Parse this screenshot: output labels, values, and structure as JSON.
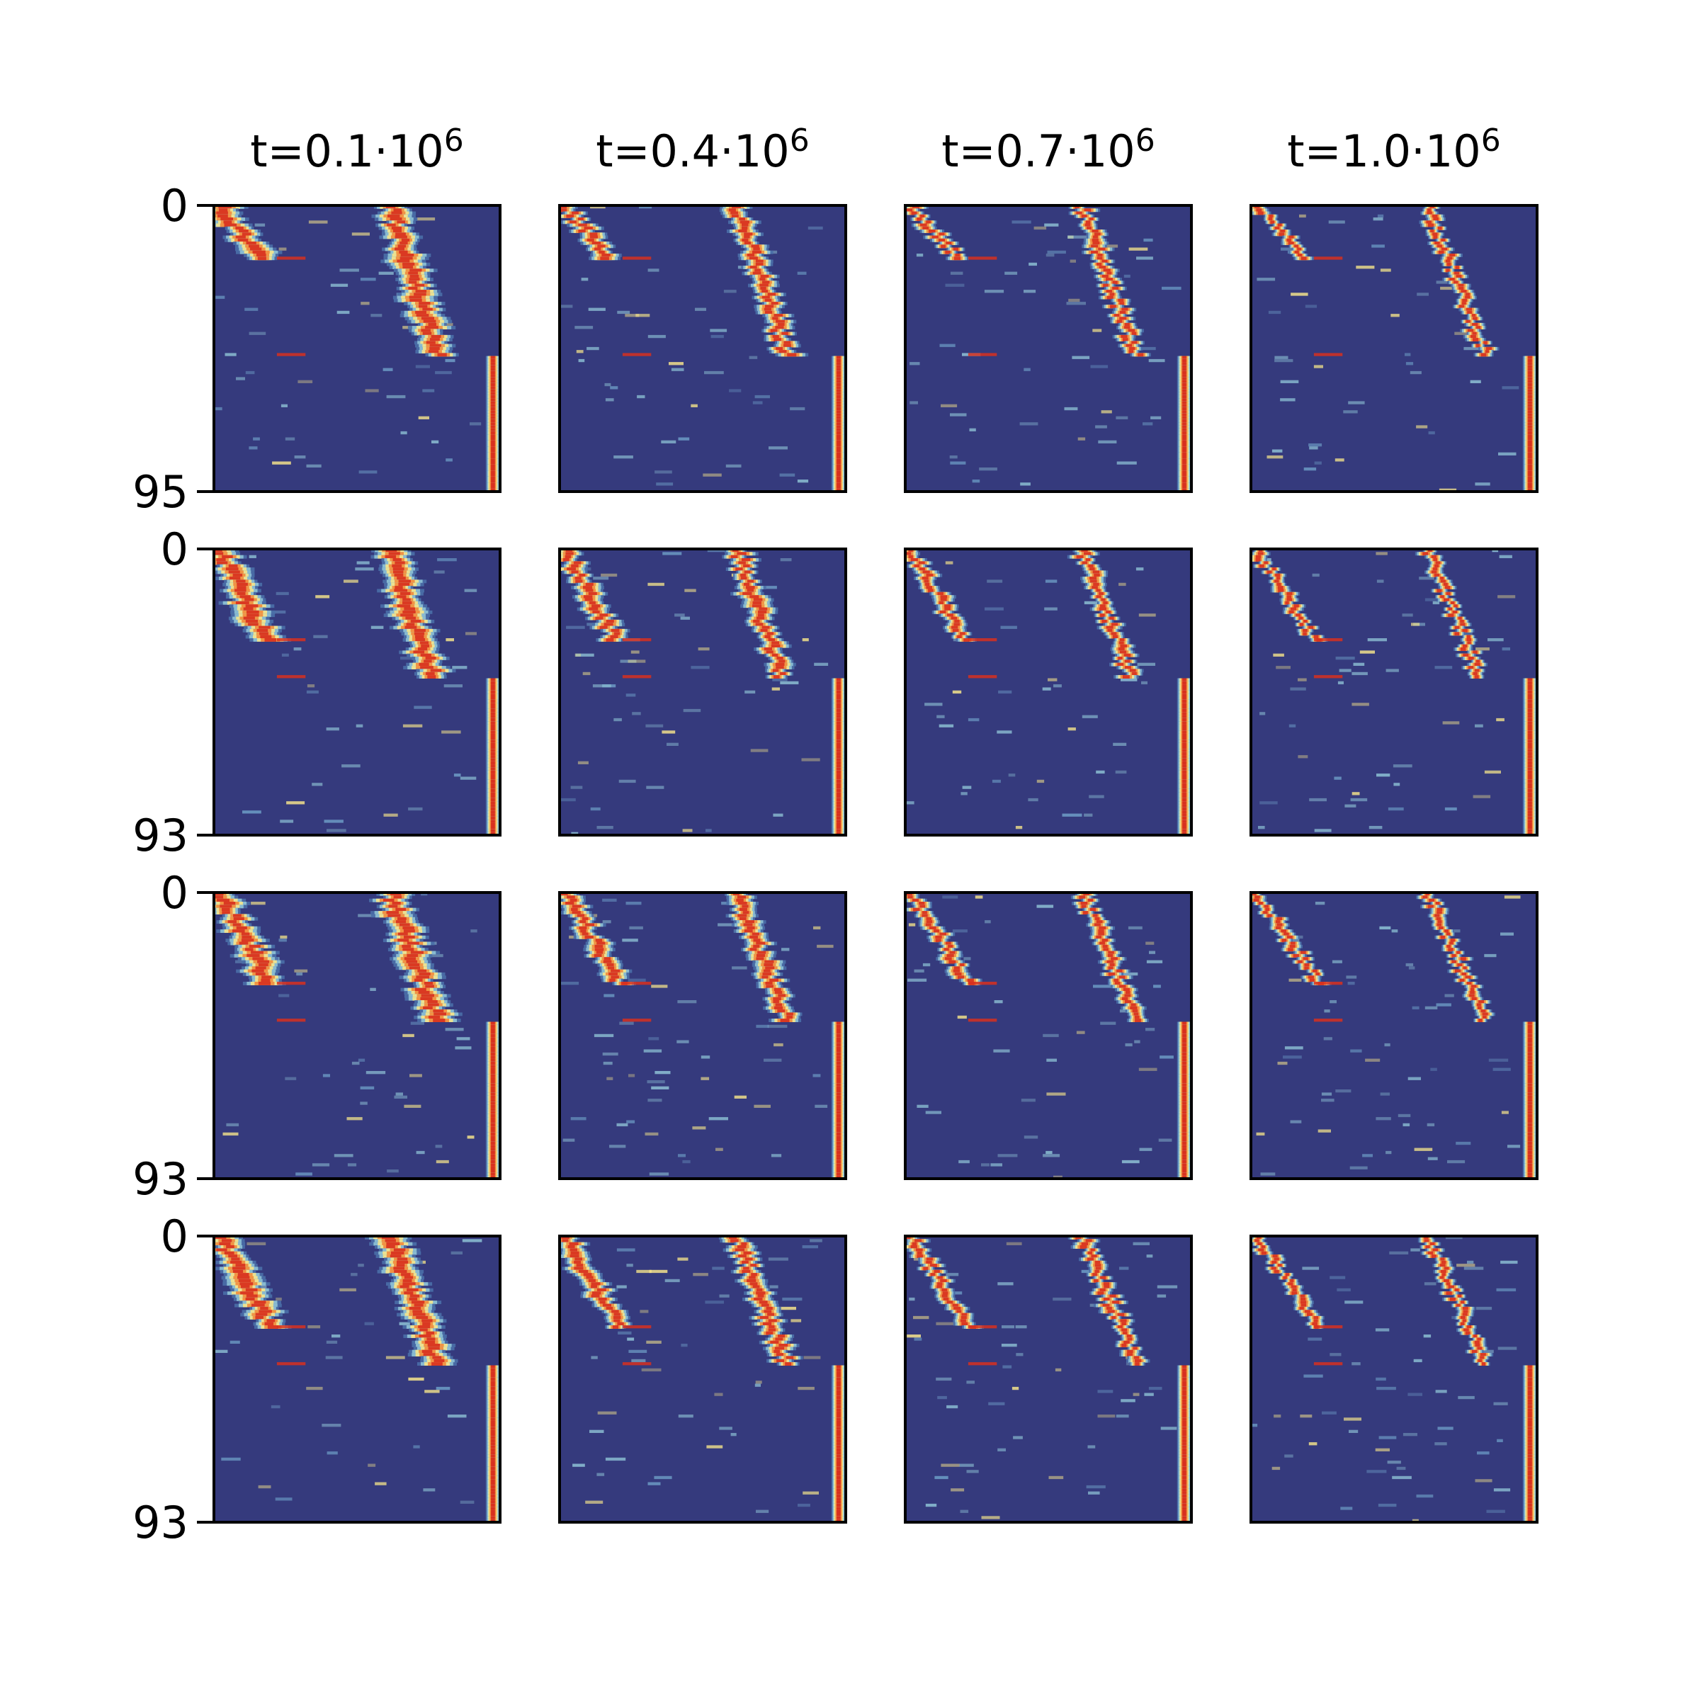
{
  "chart_data": {
    "type": "heatmap",
    "colormap": "RdYlBu_r",
    "background_color": "#353A7D",
    "grid": false,
    "columns": [
      {
        "prefix": "t=0.1·10",
        "exp": "6"
      },
      {
        "prefix": "t=0.4·10",
        "exp": "6"
      },
      {
        "prefix": "t=0.7·10",
        "exp": "6"
      },
      {
        "prefix": "t=1.0·10",
        "exp": "6"
      }
    ],
    "rows": [
      {
        "y_ticks": [
          "0",
          "95"
        ],
        "n_units": 95,
        "group_boundaries": [
          18,
          50
        ],
        "field_at": [
          [
            0,
            18,
            0.02,
            0.2
          ],
          [
            0,
            50,
            0.62,
            0.82
          ],
          [
            50,
            95,
            0.96,
            0.99
          ]
        ]
      },
      {
        "y_ticks": [
          "0",
          "93"
        ],
        "n_units": 93,
        "group_boundaries": [
          30,
          42
        ],
        "field_at": [
          [
            0,
            30,
            0.02,
            0.22
          ],
          [
            0,
            42,
            0.62,
            0.8
          ],
          [
            42,
            93,
            0.96,
            0.99
          ]
        ]
      },
      {
        "y_ticks": [
          "0",
          "93"
        ],
        "n_units": 93,
        "group_boundaries": [
          30,
          42
        ],
        "field_at": [
          [
            0,
            30,
            0.02,
            0.24
          ],
          [
            0,
            42,
            0.62,
            0.82
          ],
          [
            42,
            93,
            0.96,
            0.99
          ]
        ]
      },
      {
        "y_ticks": [
          "0",
          "93"
        ],
        "n_units": 93,
        "group_boundaries": [
          30,
          42
        ],
        "field_at": [
          [
            0,
            30,
            0.02,
            0.24
          ],
          [
            0,
            42,
            0.62,
            0.82
          ],
          [
            42,
            93,
            0.96,
            0.99
          ]
        ]
      }
    ]
  }
}
